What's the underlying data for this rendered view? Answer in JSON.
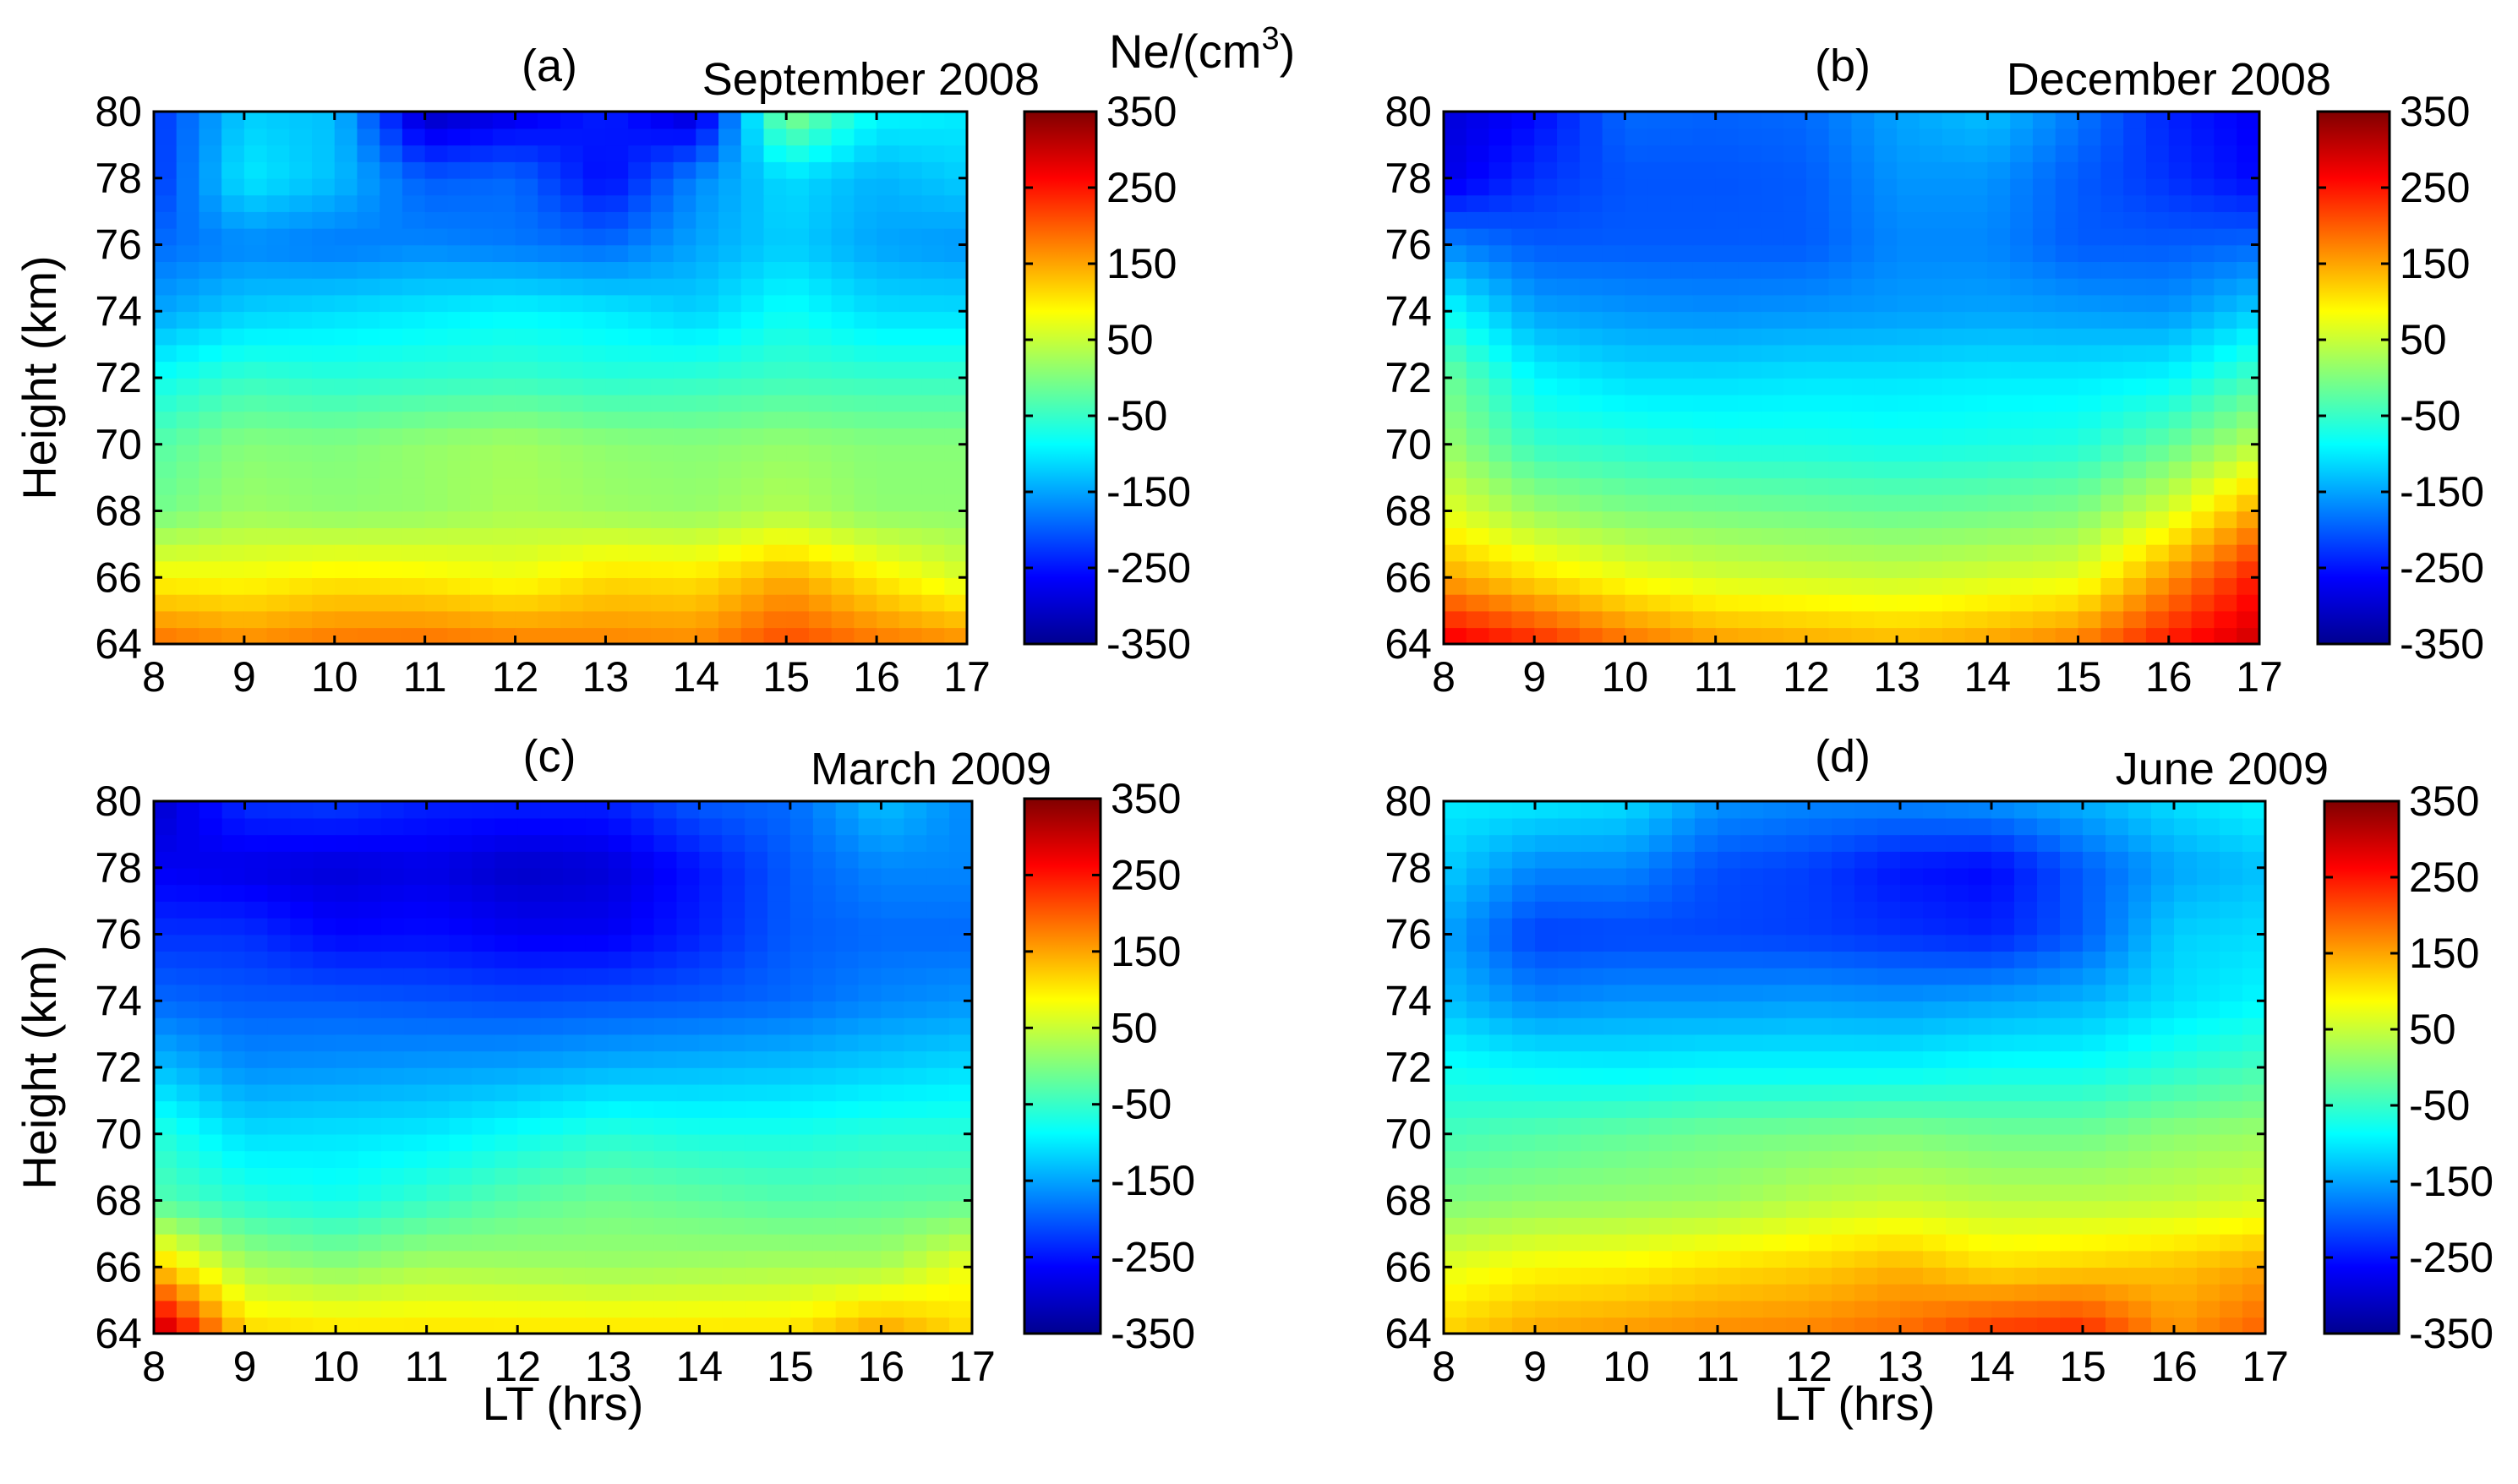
{
  "figure": {
    "unit_label_prefix": "Ne/(cm",
    "unit_label_sup": "3",
    "unit_label_suffix": ")",
    "xlabel": "LT (hrs)",
    "ylabel": "Height (km)"
  },
  "chart_data": [
    {
      "type": "heatmap",
      "panel": "(a)",
      "title": "September 2008",
      "xlabel": "",
      "ylabel": "Height (km)",
      "x": [
        8,
        9,
        10,
        11,
        12,
        13,
        14,
        15,
        16,
        17
      ],
      "y": [
        64,
        66,
        68,
        70,
        72,
        74,
        76,
        78,
        80
      ],
      "xlim": [
        8,
        17
      ],
      "ylim": [
        64,
        80
      ],
      "colorbar_ticks": [
        "350",
        "250",
        "150",
        "50",
        "-50",
        "-150",
        "-250",
        "-350"
      ],
      "zlim": [
        -350,
        350
      ],
      "values": [
        [
          190,
          170,
          185,
          190,
          180,
          175,
          170,
          215,
          185,
          170
        ],
        [
          90,
          85,
          100,
          95,
          80,
          110,
          105,
          145,
          100,
          60
        ],
        [
          -10,
          20,
          10,
          15,
          30,
          20,
          15,
          35,
          10,
          10
        ],
        [
          -30,
          5,
          0,
          15,
          25,
          10,
          5,
          15,
          5,
          5
        ],
        [
          -80,
          -50,
          -60,
          -55,
          -50,
          -60,
          -55,
          -45,
          -50,
          -50
        ],
        [
          -150,
          -120,
          -110,
          -100,
          -90,
          -100,
          -120,
          -80,
          -110,
          -110
        ],
        [
          -190,
          -170,
          -180,
          -170,
          -180,
          -190,
          -150,
          -120,
          -150,
          -160
        ],
        [
          -230,
          -100,
          -130,
          -200,
          -190,
          -260,
          -170,
          -110,
          -140,
          -120
        ],
        [
          -230,
          -120,
          -130,
          -310,
          -280,
          -240,
          -300,
          10,
          -90,
          -100
        ]
      ]
    },
    {
      "type": "heatmap",
      "panel": "(b)",
      "title": "December 2008",
      "xlabel": "",
      "ylabel": "",
      "x": [
        8,
        9,
        10,
        11,
        12,
        13,
        14,
        15,
        16,
        17
      ],
      "y": [
        64,
        66,
        68,
        70,
        72,
        74,
        76,
        78,
        80
      ],
      "xlim": [
        8,
        17
      ],
      "ylim": [
        64,
        80
      ],
      "colorbar_ticks": [
        "350",
        "250",
        "150",
        "50",
        "-50",
        "-150",
        "-250",
        "-350"
      ],
      "zlim": [
        -350,
        350
      ],
      "values": [
        [
          280,
          240,
          190,
          160,
          150,
          140,
          155,
          180,
          250,
          300
        ],
        [
          150,
          110,
          80,
          60,
          55,
          50,
          60,
          70,
          160,
          250
        ],
        [
          70,
          20,
          0,
          -5,
          -10,
          -15,
          -10,
          0,
          60,
          150
        ],
        [
          20,
          -50,
          -60,
          -70,
          -70,
          -75,
          -70,
          -65,
          -20,
          40
        ],
        [
          -10,
          -90,
          -110,
          -110,
          -105,
          -105,
          -100,
          -100,
          -90,
          -40
        ],
        [
          -80,
          -150,
          -160,
          -165,
          -160,
          -155,
          -150,
          -155,
          -160,
          -120
        ],
        [
          -170,
          -200,
          -200,
          -200,
          -200,
          -170,
          -170,
          -200,
          -200,
          -190
        ],
        [
          -280,
          -230,
          -205,
          -205,
          -200,
          -160,
          -160,
          -200,
          -230,
          -260
        ],
        [
          -290,
          -260,
          -190,
          -195,
          -190,
          -150,
          -130,
          -180,
          -240,
          -270
        ]
      ]
    },
    {
      "type": "heatmap",
      "panel": "(c)",
      "title": "March 2009",
      "xlabel": "LT (hrs)",
      "ylabel": "Height (km)",
      "x": [
        8,
        9,
        10,
        11,
        12,
        13,
        14,
        15,
        16,
        17
      ],
      "y": [
        64,
        66,
        68,
        70,
        72,
        74,
        76,
        78,
        80
      ],
      "xlim": [
        8,
        17
      ],
      "ylim": [
        64,
        80
      ],
      "colorbar_ticks": [
        "350",
        "250",
        "150",
        "50",
        "-50",
        "-150",
        "-250",
        "-350"
      ],
      "zlim": [
        -350,
        350
      ],
      "values": [
        [
          330,
          120,
          110,
          110,
          110,
          110,
          110,
          110,
          160,
          110
        ],
        [
          130,
          30,
          10,
          30,
          25,
          20,
          25,
          30,
          30,
          80
        ],
        [
          -30,
          -60,
          -75,
          -50,
          -25,
          -10,
          -20,
          -30,
          -25,
          -20
        ],
        [
          -60,
          -110,
          -105,
          -100,
          -80,
          -60,
          -70,
          -70,
          -60,
          -60
        ],
        [
          -130,
          -165,
          -160,
          -155,
          -150,
          -140,
          -135,
          -130,
          -120,
          -110
        ],
        [
          -190,
          -200,
          -200,
          -205,
          -210,
          -205,
          -200,
          -190,
          -170,
          -160
        ],
        [
          -230,
          -230,
          -260,
          -255,
          -270,
          -270,
          -240,
          -200,
          -190,
          -190
        ],
        [
          -270,
          -280,
          -290,
          -280,
          -300,
          -290,
          -250,
          -200,
          -170,
          -170
        ],
        [
          -300,
          -230,
          -220,
          -240,
          -240,
          -240,
          -200,
          -190,
          -130,
          -170
        ]
      ]
    },
    {
      "type": "heatmap",
      "panel": "(d)",
      "title": "June 2009",
      "xlabel": "LT (hrs)",
      "ylabel": "",
      "x": [
        8,
        9,
        10,
        11,
        12,
        13,
        14,
        15,
        16,
        17
      ],
      "y": [
        64,
        66,
        68,
        70,
        72,
        74,
        76,
        78,
        80
      ],
      "xlim": [
        8,
        17
      ],
      "ylim": [
        64,
        80
      ],
      "colorbar_ticks": [
        "350",
        "250",
        "150",
        "50",
        "-50",
        "-150",
        "-250",
        "-350"
      ],
      "zlim": [
        -350,
        350
      ],
      "values": [
        [
          120,
          150,
          160,
          170,
          175,
          190,
          230,
          240,
          160,
          200
        ],
        [
          70,
          90,
          95,
          110,
          120,
          140,
          110,
          120,
          130,
          150
        ],
        [
          0,
          10,
          15,
          20,
          40,
          50,
          40,
          40,
          45,
          60
        ],
        [
          -40,
          -30,
          -20,
          -10,
          -5,
          0,
          -10,
          -10,
          10,
          20
        ],
        [
          -80,
          -90,
          -95,
          -90,
          -90,
          -90,
          -80,
          -80,
          -60,
          -40
        ],
        [
          -130,
          -170,
          -160,
          -160,
          -155,
          -160,
          -150,
          -140,
          -110,
          -90
        ],
        [
          -150,
          -220,
          -215,
          -215,
          -220,
          -230,
          -240,
          -200,
          -120,
          -110
        ],
        [
          -120,
          -170,
          -170,
          -210,
          -220,
          -250,
          -260,
          -200,
          -150,
          -130
        ],
        [
          -100,
          -100,
          -110,
          -160,
          -170,
          -170,
          -160,
          -140,
          -110,
          -90
        ]
      ]
    }
  ]
}
